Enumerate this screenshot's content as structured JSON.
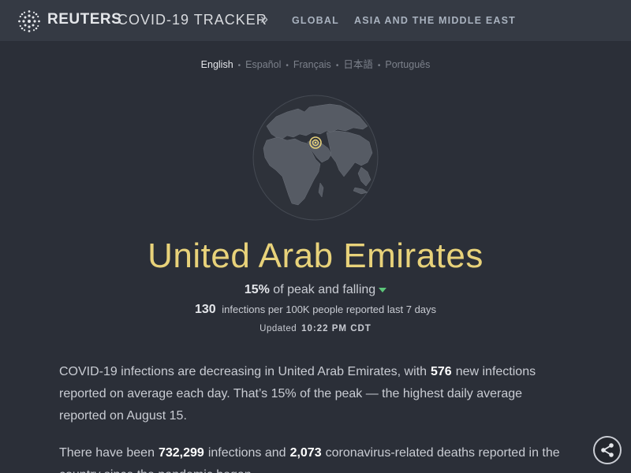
{
  "header": {
    "brand": "REUTERS",
    "tracker": "COVID-19 TRACKER",
    "chevron": "»",
    "nav": [
      "GLOBAL",
      "ASIA AND THE MIDDLE EAST"
    ]
  },
  "languages": [
    "English",
    "Español",
    "Français",
    "日本語",
    "Português"
  ],
  "active_language": "English",
  "country": {
    "name": "United Arab Emirates",
    "peak_percent": "15%",
    "peak_text": "of peak and falling",
    "per100k_value": "130",
    "per100k_text": "infections per 100K people reported last 7 days",
    "updated_label": "Updated",
    "updated_time": "10:22 PM CDT"
  },
  "summary": {
    "p1_a": "COVID-19 infections are decreasing in United Arab Emirates, with",
    "p1_val": "576",
    "p1_b": "new infections reported on average each day. That’s 15% of the peak — the highest daily average reported on August 15.",
    "p2_a": "There have been",
    "p2_val1": "732,299",
    "p2_b": "infections and",
    "p2_val2": "2,073",
    "p2_c": "coronavirus-related deaths reported in the country since the pandemic began."
  },
  "colors": {
    "background": "#2b2f38",
    "header": "#353a44",
    "title": "#e8d27a",
    "falling_arrow": "#5cc77a"
  },
  "icons": {
    "logo": "reuters-logo-icon",
    "share": "share-icon",
    "trend": "arrow-down-icon"
  }
}
